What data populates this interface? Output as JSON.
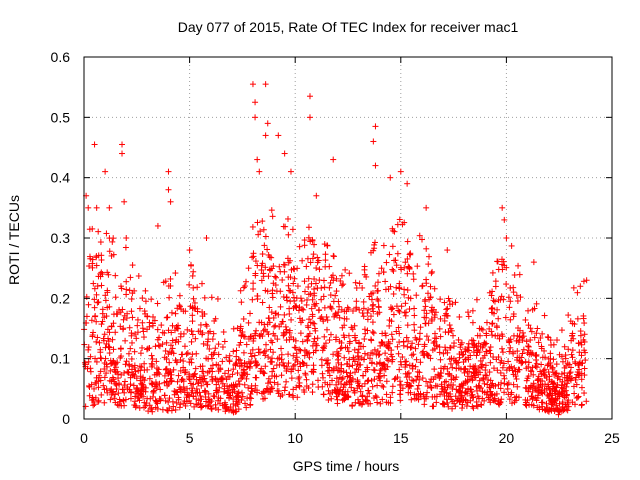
{
  "chart_data": {
    "type": "scatter",
    "title": "Day 077 of 2015, Rate Of TEC Index for receiver mac1",
    "xlabel": "GPS time / hours",
    "ylabel": "ROTI / TECUs",
    "xlim": [
      0,
      25
    ],
    "ylim": [
      0,
      0.6
    ],
    "x_ticks": [
      0,
      5,
      10,
      15,
      20,
      25
    ],
    "y_ticks": [
      0,
      0.1,
      0.2,
      0.3,
      0.4,
      0.5,
      0.6
    ],
    "x_tick_labels": [
      "0",
      "5",
      "10",
      "15",
      "20",
      "25"
    ],
    "y_tick_labels": [
      "0",
      "0.1",
      "0.2",
      "0.3",
      "0.4",
      "0.5",
      "0.6"
    ],
    "grid": true,
    "marker": "plus",
    "marker_color": "#ff0000",
    "series": [
      {
        "name": "ROTI",
        "note": "dense cloud of ~thousands of points from 0 to 23.8 h; representative envelope and notable outliers listed",
        "envelope": [
          {
            "x": 0.0,
            "base": 0.05,
            "upper": 0.28
          },
          {
            "x": 1.0,
            "base": 0.06,
            "upper": 0.25
          },
          {
            "x": 2.0,
            "base": 0.05,
            "upper": 0.23
          },
          {
            "x": 3.0,
            "base": 0.03,
            "upper": 0.16
          },
          {
            "x": 4.0,
            "base": 0.03,
            "upper": 0.18
          },
          {
            "x": 5.0,
            "base": 0.05,
            "upper": 0.2
          },
          {
            "x": 6.0,
            "base": 0.04,
            "upper": 0.17
          },
          {
            "x": 7.0,
            "base": 0.02,
            "upper": 0.08
          },
          {
            "x": 8.0,
            "base": 0.06,
            "upper": 0.26
          },
          {
            "x": 9.0,
            "base": 0.09,
            "upper": 0.3
          },
          {
            "x": 10.0,
            "base": 0.08,
            "upper": 0.26
          },
          {
            "x": 11.0,
            "base": 0.1,
            "upper": 0.27
          },
          {
            "x": 12.0,
            "base": 0.05,
            "upper": 0.2
          },
          {
            "x": 13.0,
            "base": 0.05,
            "upper": 0.18
          },
          {
            "x": 14.0,
            "base": 0.06,
            "upper": 0.26
          },
          {
            "x": 15.0,
            "base": 0.07,
            "upper": 0.3
          },
          {
            "x": 16.0,
            "base": 0.06,
            "upper": 0.25
          },
          {
            "x": 17.0,
            "base": 0.04,
            "upper": 0.15
          },
          {
            "x": 18.0,
            "base": 0.04,
            "upper": 0.13
          },
          {
            "x": 19.0,
            "base": 0.05,
            "upper": 0.16
          },
          {
            "x": 20.0,
            "base": 0.06,
            "upper": 0.25
          },
          {
            "x": 21.0,
            "base": 0.05,
            "upper": 0.16
          },
          {
            "x": 22.0,
            "base": 0.03,
            "upper": 0.1
          },
          {
            "x": 22.5,
            "base": 0.015,
            "upper": 0.07
          },
          {
            "x": 23.0,
            "base": 0.04,
            "upper": 0.15
          },
          {
            "x": 23.8,
            "base": 0.05,
            "upper": 0.2
          }
        ],
        "outliers": [
          {
            "x": 0.1,
            "y": 0.37
          },
          {
            "x": 0.2,
            "y": 0.35
          },
          {
            "x": 0.5,
            "y": 0.455
          },
          {
            "x": 0.6,
            "y": 0.35
          },
          {
            "x": 1.0,
            "y": 0.41
          },
          {
            "x": 1.2,
            "y": 0.35
          },
          {
            "x": 1.8,
            "y": 0.455
          },
          {
            "x": 1.8,
            "y": 0.44
          },
          {
            "x": 1.9,
            "y": 0.36
          },
          {
            "x": 2.0,
            "y": 0.3
          },
          {
            "x": 3.5,
            "y": 0.32
          },
          {
            "x": 4.0,
            "y": 0.41
          },
          {
            "x": 4.0,
            "y": 0.38
          },
          {
            "x": 4.1,
            "y": 0.36
          },
          {
            "x": 5.0,
            "y": 0.28
          },
          {
            "x": 5.8,
            "y": 0.3
          },
          {
            "x": 8.0,
            "y": 0.555
          },
          {
            "x": 8.1,
            "y": 0.525
          },
          {
            "x": 8.1,
            "y": 0.5
          },
          {
            "x": 8.6,
            "y": 0.555
          },
          {
            "x": 8.7,
            "y": 0.49
          },
          {
            "x": 8.6,
            "y": 0.47
          },
          {
            "x": 8.2,
            "y": 0.43
          },
          {
            "x": 8.3,
            "y": 0.41
          },
          {
            "x": 9.2,
            "y": 0.47
          },
          {
            "x": 9.5,
            "y": 0.44
          },
          {
            "x": 9.8,
            "y": 0.41
          },
          {
            "x": 10.7,
            "y": 0.535
          },
          {
            "x": 10.7,
            "y": 0.5
          },
          {
            "x": 11.8,
            "y": 0.43
          },
          {
            "x": 11.0,
            "y": 0.37
          },
          {
            "x": 13.8,
            "y": 0.485
          },
          {
            "x": 13.7,
            "y": 0.46
          },
          {
            "x": 13.8,
            "y": 0.42
          },
          {
            "x": 14.5,
            "y": 0.4
          },
          {
            "x": 15.0,
            "y": 0.41
          },
          {
            "x": 15.3,
            "y": 0.39
          },
          {
            "x": 16.2,
            "y": 0.35
          },
          {
            "x": 17.2,
            "y": 0.28
          },
          {
            "x": 19.8,
            "y": 0.35
          },
          {
            "x": 19.9,
            "y": 0.33
          },
          {
            "x": 20.0,
            "y": 0.3
          },
          {
            "x": 21.3,
            "y": 0.26
          },
          {
            "x": 23.5,
            "y": 0.22
          },
          {
            "x": 23.8,
            "y": 0.23
          }
        ]
      }
    ]
  }
}
